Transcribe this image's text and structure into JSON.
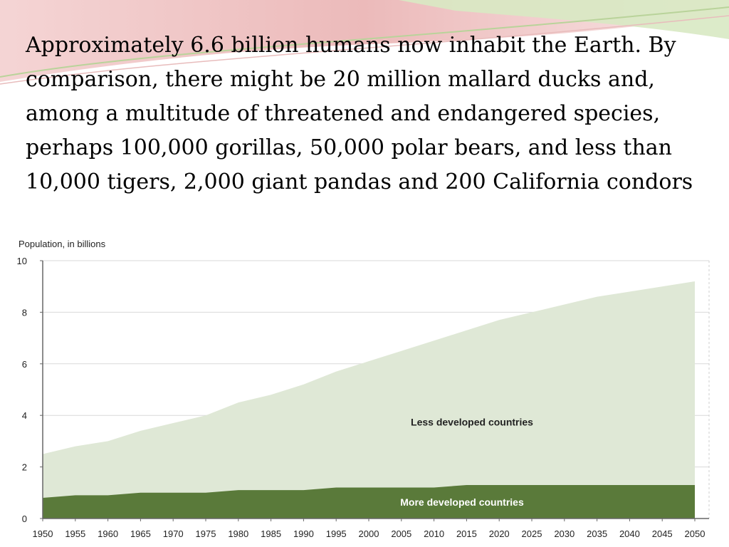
{
  "slide": {
    "paragraph": "Approximately 6.6 billion humans now inhabit the Earth. By comparison, there might be 20 million mallard ducks and, among a multitude of threatened and endangered species, perhaps 100,000 gorillas, 50,000 polar bears, and less than 10,000 tigers, 2,000 giant pandas and 200 California condors"
  },
  "colors": {
    "less_developed": "#dfe8d6",
    "more_developed": "#5a7a3a",
    "deco_red": "#e8a7a7",
    "deco_green": "#cfe3b6"
  },
  "chart_data": {
    "type": "area",
    "stacked": true,
    "title": "Population, in billions",
    "xlabel": "",
    "ylabel": "",
    "ylim": [
      0,
      10
    ],
    "yticks": [
      0,
      2,
      4,
      6,
      8,
      10
    ],
    "grid": true,
    "x": [
      1950,
      1955,
      1960,
      1965,
      1970,
      1975,
      1980,
      1985,
      1990,
      1995,
      2000,
      2005,
      2010,
      2015,
      2020,
      2025,
      2030,
      2035,
      2040,
      2045,
      2050
    ],
    "series": [
      {
        "name": "More developed countries",
        "values": [
          0.8,
          0.9,
          0.9,
          1.0,
          1.0,
          1.0,
          1.1,
          1.1,
          1.1,
          1.2,
          1.2,
          1.2,
          1.2,
          1.3,
          1.3,
          1.3,
          1.3,
          1.3,
          1.3,
          1.3,
          1.3
        ]
      },
      {
        "name": "Less developed countries",
        "values": [
          1.7,
          1.9,
          2.1,
          2.4,
          2.7,
          3.0,
          3.4,
          3.7,
          4.1,
          4.5,
          4.9,
          5.3,
          5.7,
          6.0,
          6.4,
          6.7,
          7.0,
          7.3,
          7.5,
          7.7,
          7.9
        ]
      }
    ]
  }
}
